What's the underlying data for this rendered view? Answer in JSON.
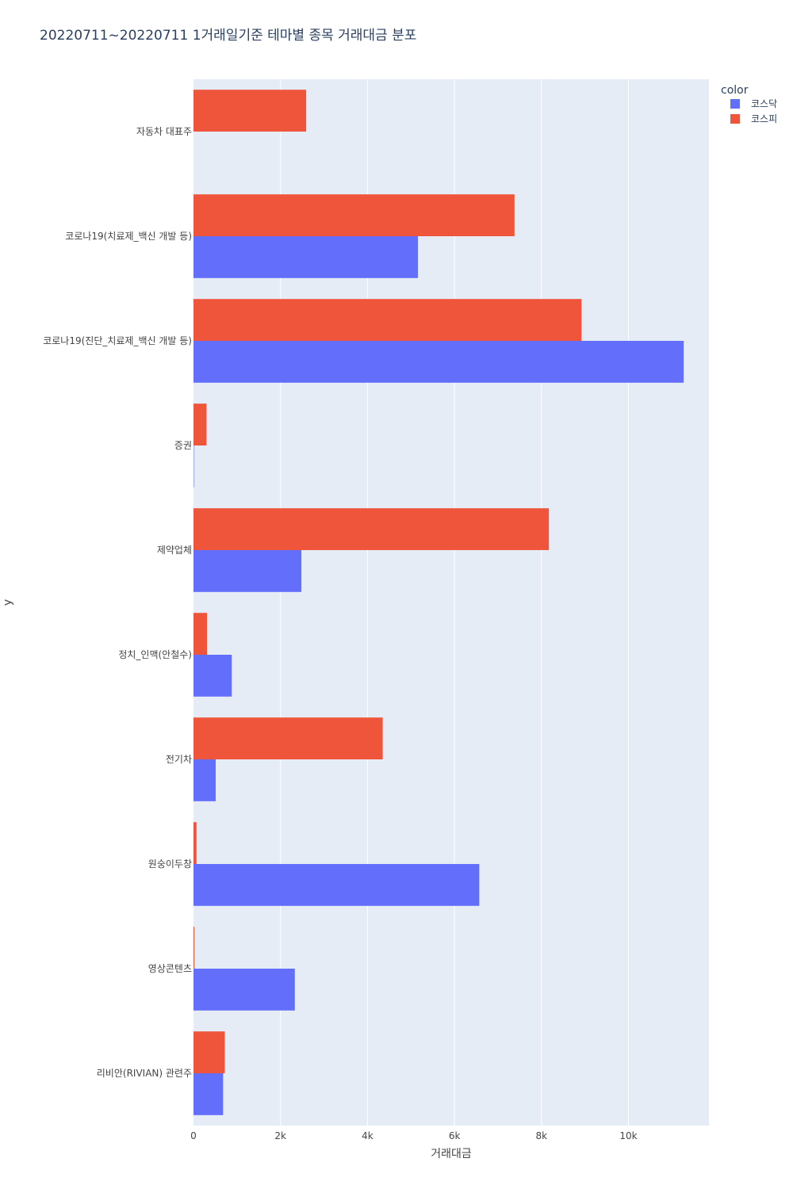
{
  "chart_data": {
    "type": "bar",
    "orientation": "horizontal",
    "barmode": "group",
    "title": "20220711~20220711 1거래일기준 테마별 종목 거래대금 분포",
    "xlabel": "거래대금",
    "ylabel": "y",
    "xlim": [
      0,
      11850
    ],
    "xticks": [
      0,
      2000,
      4000,
      6000,
      8000,
      10000
    ],
    "xtick_labels": [
      "0",
      "2k",
      "4k",
      "6k",
      "8k",
      "10k"
    ],
    "grid": true,
    "legend": {
      "title": "color",
      "position": "top-right"
    },
    "categories": [
      "자동차 대표주",
      "코로나19(치료제_백신 개발 등)",
      "코로나19(진단_치료제_백신 개발 등)",
      "증권",
      "제약업체",
      "정치_인맥(안철수)",
      "전기차",
      "원숭이두창",
      "영상콘텐츠",
      "리비안(RIVIAN) 관련주"
    ],
    "series": [
      {
        "name": "코스닥",
        "color": "#636efa",
        "values": [
          0,
          5160,
          11270,
          10,
          2480,
          880,
          510,
          6570,
          2330,
          680
        ]
      },
      {
        "name": "코스피",
        "color": "#ef553b",
        "values": [
          2590,
          7380,
          8920,
          300,
          8170,
          310,
          4350,
          70,
          20,
          720
        ]
      }
    ]
  }
}
